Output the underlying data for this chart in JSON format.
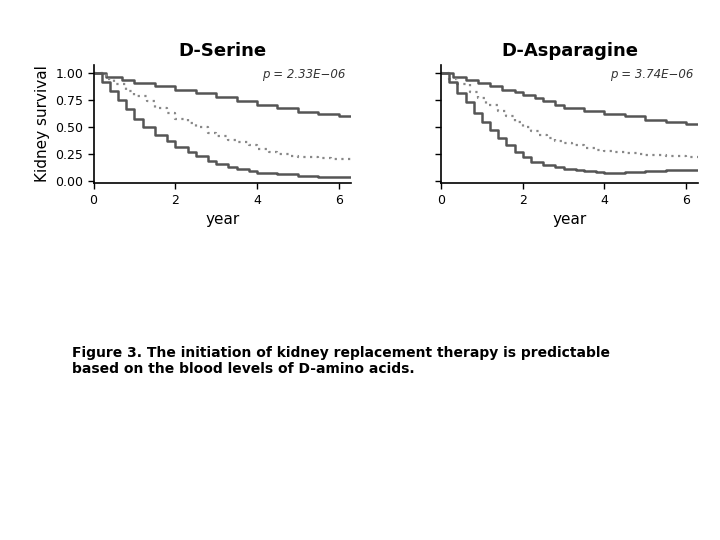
{
  "title_left": "D-Serine",
  "title_right": "D-Asparagine",
  "ylabel": "Kidney survival",
  "xlabel": "year",
  "pvalue_left": "p = 2.33E−06",
  "pvalue_right": "p = 3.74E−06",
  "caption": "Figure 3. The initiation of kidney replacement therapy is predictable\nbased on the blood levels of D-amino acids.",
  "xlim": [
    0,
    6.3
  ],
  "ylim": [
    -0.02,
    1.08
  ],
  "xticks": [
    0,
    2,
    4,
    6
  ],
  "yticks": [
    0.0,
    0.25,
    0.5,
    0.75,
    1.0
  ],
  "color_high": "#555555",
  "color_mid": "#888888",
  "color_low": "#555555",
  "background": "#ffffff",
  "serine_high_x": [
    0,
    0.3,
    0.3,
    0.7,
    0.7,
    1.0,
    1.0,
    1.5,
    1.5,
    2.0,
    2.0,
    2.5,
    2.5,
    3.0,
    3.0,
    3.5,
    3.5,
    4.0,
    4.0,
    4.5,
    4.5,
    5.0,
    5.0,
    5.5,
    5.5,
    6.0,
    6.0,
    6.3
  ],
  "serine_high_y": [
    1.0,
    1.0,
    0.97,
    0.97,
    0.94,
    0.94,
    0.91,
    0.91,
    0.88,
    0.88,
    0.85,
    0.85,
    0.82,
    0.82,
    0.78,
    0.78,
    0.74,
    0.74,
    0.71,
    0.71,
    0.68,
    0.68,
    0.64,
    0.64,
    0.62,
    0.62,
    0.6,
    0.6
  ],
  "serine_mid_x": [
    0,
    0.3,
    0.3,
    0.5,
    0.5,
    0.8,
    0.8,
    1.0,
    1.0,
    1.3,
    1.3,
    1.5,
    1.5,
    1.8,
    1.8,
    2.0,
    2.0,
    2.3,
    2.3,
    2.5,
    2.5,
    2.8,
    2.8,
    3.0,
    3.0,
    3.3,
    3.3,
    3.5,
    3.5,
    3.8,
    3.8,
    4.0,
    4.0,
    4.3,
    4.3,
    4.5,
    4.5,
    4.8,
    4.8,
    5.0,
    5.0,
    5.5,
    5.5,
    5.8,
    5.8,
    6.3
  ],
  "serine_mid_y": [
    1.0,
    1.0,
    0.95,
    0.95,
    0.9,
    0.9,
    0.84,
    0.84,
    0.79,
    0.79,
    0.74,
    0.74,
    0.68,
    0.68,
    0.63,
    0.63,
    0.58,
    0.58,
    0.54,
    0.54,
    0.5,
    0.5,
    0.45,
    0.45,
    0.42,
    0.42,
    0.38,
    0.38,
    0.36,
    0.36,
    0.33,
    0.33,
    0.3,
    0.3,
    0.27,
    0.27,
    0.25,
    0.25,
    0.23,
    0.23,
    0.22,
    0.22,
    0.21,
    0.21,
    0.2,
    0.2
  ],
  "serine_low_x": [
    0,
    0.2,
    0.2,
    0.4,
    0.4,
    0.6,
    0.6,
    0.8,
    0.8,
    1.0,
    1.0,
    1.2,
    1.2,
    1.5,
    1.5,
    1.8,
    1.8,
    2.0,
    2.0,
    2.3,
    2.3,
    2.5,
    2.5,
    2.8,
    2.8,
    3.0,
    3.0,
    3.3,
    3.3,
    3.5,
    3.5,
    3.8,
    3.8,
    4.0,
    4.0,
    4.5,
    4.5,
    5.0,
    5.0,
    5.5,
    5.5,
    6.0,
    6.0,
    6.3
  ],
  "serine_low_y": [
    1.0,
    1.0,
    0.92,
    0.92,
    0.84,
    0.84,
    0.75,
    0.75,
    0.67,
    0.67,
    0.58,
    0.58,
    0.5,
    0.5,
    0.43,
    0.43,
    0.37,
    0.37,
    0.32,
    0.32,
    0.27,
    0.27,
    0.23,
    0.23,
    0.19,
    0.19,
    0.16,
    0.16,
    0.13,
    0.13,
    0.11,
    0.11,
    0.09,
    0.09,
    0.07,
    0.07,
    0.06,
    0.06,
    0.05,
    0.05,
    0.04,
    0.04,
    0.04,
    0.04
  ],
  "asparagine_high_x": [
    0,
    0.3,
    0.3,
    0.6,
    0.6,
    0.9,
    0.9,
    1.2,
    1.2,
    1.5,
    1.5,
    1.8,
    1.8,
    2.0,
    2.0,
    2.3,
    2.3,
    2.5,
    2.5,
    2.8,
    2.8,
    3.0,
    3.0,
    3.5,
    3.5,
    4.0,
    4.0,
    4.5,
    4.5,
    5.0,
    5.0,
    5.5,
    5.5,
    6.0,
    6.0,
    6.3
  ],
  "asparagine_high_y": [
    1.0,
    1.0,
    0.97,
    0.97,
    0.94,
    0.94,
    0.91,
    0.91,
    0.88,
    0.88,
    0.85,
    0.85,
    0.83,
    0.83,
    0.8,
    0.8,
    0.77,
    0.77,
    0.74,
    0.74,
    0.71,
    0.71,
    0.68,
    0.68,
    0.65,
    0.65,
    0.62,
    0.62,
    0.6,
    0.6,
    0.57,
    0.57,
    0.55,
    0.55,
    0.53,
    0.53
  ],
  "asparagine_mid_x": [
    0,
    0.2,
    0.2,
    0.4,
    0.4,
    0.7,
    0.7,
    0.9,
    0.9,
    1.1,
    1.1,
    1.4,
    1.4,
    1.6,
    1.6,
    1.8,
    1.8,
    2.0,
    2.0,
    2.2,
    2.2,
    2.4,
    2.4,
    2.6,
    2.6,
    2.8,
    2.8,
    3.0,
    3.0,
    3.2,
    3.2,
    3.5,
    3.5,
    3.8,
    3.8,
    4.0,
    4.0,
    4.2,
    4.2,
    4.5,
    4.5,
    4.8,
    4.8,
    5.0,
    5.0,
    5.5,
    5.5,
    6.0,
    6.0,
    6.3
  ],
  "asparagine_mid_y": [
    1.0,
    1.0,
    0.95,
    0.95,
    0.9,
    0.9,
    0.83,
    0.83,
    0.77,
    0.77,
    0.71,
    0.71,
    0.65,
    0.65,
    0.6,
    0.6,
    0.55,
    0.55,
    0.5,
    0.5,
    0.46,
    0.46,
    0.43,
    0.43,
    0.4,
    0.4,
    0.37,
    0.37,
    0.35,
    0.35,
    0.33,
    0.33,
    0.31,
    0.31,
    0.29,
    0.29,
    0.28,
    0.28,
    0.27,
    0.27,
    0.26,
    0.26,
    0.25,
    0.25,
    0.24,
    0.24,
    0.23,
    0.23,
    0.22,
    0.22
  ],
  "asparagine_low_x": [
    0,
    0.2,
    0.2,
    0.4,
    0.4,
    0.6,
    0.6,
    0.8,
    0.8,
    1.0,
    1.0,
    1.2,
    1.2,
    1.4,
    1.4,
    1.6,
    1.6,
    1.8,
    1.8,
    2.0,
    2.0,
    2.2,
    2.2,
    2.5,
    2.5,
    2.8,
    2.8,
    3.0,
    3.0,
    3.3,
    3.3,
    3.5,
    3.5,
    3.8,
    3.8,
    4.0,
    4.0,
    4.5,
    4.5,
    5.0,
    5.0,
    5.5,
    5.5,
    6.0,
    6.0,
    6.3
  ],
  "asparagine_low_y": [
    1.0,
    1.0,
    0.92,
    0.92,
    0.82,
    0.82,
    0.73,
    0.73,
    0.63,
    0.63,
    0.55,
    0.55,
    0.47,
    0.47,
    0.4,
    0.4,
    0.33,
    0.33,
    0.27,
    0.27,
    0.22,
    0.22,
    0.18,
    0.18,
    0.15,
    0.15,
    0.13,
    0.13,
    0.11,
    0.11,
    0.1,
    0.1,
    0.09,
    0.09,
    0.08,
    0.08,
    0.07,
    0.07,
    0.08,
    0.08,
    0.09,
    0.09,
    0.1,
    0.1,
    0.1,
    0.1
  ]
}
